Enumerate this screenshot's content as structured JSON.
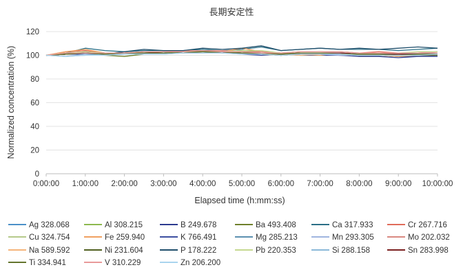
{
  "chart_data": {
    "type": "line",
    "title": "長期安定性",
    "xlabel": "Elapsed time (h:mm:ss)",
    "ylabel": "Normalized concentration (%)",
    "ylim": [
      0,
      120
    ],
    "yticks": [
      0,
      20,
      40,
      60,
      80,
      100,
      120
    ],
    "grid": true,
    "legend_position": "bottom",
    "x": [
      "0:00:00",
      "0:30:00",
      "1:00:00",
      "1:30:00",
      "2:00:00",
      "2:30:00",
      "3:00:00",
      "3:30:00",
      "4:00:00",
      "4:30:00",
      "5:00:00",
      "5:30:00",
      "6:00:00",
      "6:30:00",
      "7:00:00",
      "7:30:00",
      "8:00:00",
      "8:30:00",
      "9:00:00",
      "9:30:00",
      "10:00:00"
    ],
    "xticks": [
      "0:00:00",
      "1:00:00",
      "2:00:00",
      "3:00:00",
      "4:00:00",
      "5:00:00",
      "6:00:00",
      "7:00:00",
      "8:00:00",
      "9:00:00",
      "10:00:00"
    ],
    "series": [
      {
        "name": "Ag 328.068",
        "color": "#4a90c8",
        "values": [
          100,
          101,
          102,
          101,
          102,
          103,
          102,
          103,
          104,
          103,
          103,
          102,
          101,
          102,
          101,
          102,
          101,
          101,
          100,
          101,
          101
        ]
      },
      {
        "name": "Al 308.215",
        "color": "#8db94e",
        "values": [
          100,
          102,
          103,
          102,
          101,
          102,
          103,
          103,
          102,
          103,
          104,
          103,
          102,
          101,
          102,
          101,
          101,
          100,
          99,
          100,
          101
        ]
      },
      {
        "name": "B 249.678",
        "color": "#2b3a8f",
        "values": [
          100,
          101,
          102,
          102,
          101,
          102,
          102,
          103,
          103,
          103,
          101,
          100,
          101,
          100,
          100,
          100,
          99,
          99,
          98,
          99,
          100
        ]
      },
      {
        "name": "Ba 493.408",
        "color": "#6e7f2a",
        "values": [
          100,
          101,
          101,
          100,
          99,
          101,
          102,
          102,
          103,
          103,
          102,
          101,
          100,
          101,
          101,
          101,
          100,
          100,
          100,
          100,
          101
        ]
      },
      {
        "name": "Ca 317.933",
        "color": "#2a6e86",
        "values": [
          100,
          102,
          106,
          104,
          103,
          104,
          104,
          104,
          105,
          104,
          105,
          107,
          104,
          105,
          106,
          105,
          105,
          105,
          104,
          105,
          106
        ]
      },
      {
        "name": "Cr 267.716",
        "color": "#e06b5a",
        "values": [
          100,
          103,
          104,
          102,
          102,
          103,
          103,
          104,
          104,
          104,
          103,
          102,
          102,
          103,
          103,
          103,
          102,
          103,
          102,
          102,
          103
        ]
      },
      {
        "name": "Cu 324.754",
        "color": "#b5c98a",
        "values": [
          100,
          102,
          103,
          102,
          102,
          102,
          103,
          103,
          104,
          103,
          103,
          102,
          101,
          102,
          102,
          101,
          101,
          101,
          100,
          101,
          101
        ]
      },
      {
        "name": "Fe 259.940",
        "color": "#f0a060",
        "values": [
          100,
          103,
          105,
          102,
          102,
          103,
          103,
          103,
          104,
          103,
          106,
          103,
          102,
          101,
          100,
          102,
          100,
          101,
          99,
          100,
          100
        ]
      },
      {
        "name": "K 766.491",
        "color": "#3c4ea0",
        "values": [
          100,
          101,
          101,
          101,
          102,
          101,
          102,
          102,
          102,
          103,
          101,
          101,
          100,
          101,
          101,
          100,
          100,
          100,
          99,
          99,
          99
        ]
      },
      {
        "name": "Mg 285.213",
        "color": "#5b8fb0",
        "values": [
          100,
          101,
          102,
          101,
          102,
          102,
          102,
          103,
          103,
          103,
          102,
          102,
          101,
          102,
          102,
          102,
          101,
          101,
          101,
          101,
          102
        ]
      },
      {
        "name": "Mn 293.305",
        "color": "#9fb4df",
        "values": [
          100,
          99,
          101,
          100,
          101,
          101,
          101,
          102,
          102,
          102,
          101,
          101,
          100,
          101,
          101,
          100,
          100,
          100,
          100,
          100,
          100
        ]
      },
      {
        "name": "Mo 202.032",
        "color": "#d98880",
        "values": [
          100,
          102,
          103,
          102,
          102,
          103,
          103,
          104,
          104,
          104,
          103,
          103,
          102,
          103,
          103,
          103,
          102,
          102,
          102,
          102,
          103
        ]
      },
      {
        "name": "Na 589.592",
        "color": "#f5b57a",
        "values": [
          100,
          101,
          102,
          101,
          101,
          102,
          102,
          102,
          103,
          103,
          102,
          101,
          101,
          100,
          101,
          101,
          100,
          100,
          99,
          100,
          100
        ]
      },
      {
        "name": "Ni 231.604",
        "color": "#4f5f1f",
        "values": [
          100,
          101,
          102,
          101,
          101,
          102,
          102,
          102,
          103,
          102,
          102,
          101,
          100,
          101,
          101,
          101,
          100,
          100,
          100,
          100,
          100
        ]
      },
      {
        "name": "P 178.222",
        "color": "#1f4e6b",
        "values": [
          100,
          101,
          103,
          101,
          103,
          105,
          104,
          104,
          106,
          105,
          106,
          108,
          104,
          105,
          106,
          105,
          106,
          105,
          106,
          107,
          106
        ]
      },
      {
        "name": "Pb 220.353",
        "color": "#c5d88f",
        "values": [
          100,
          102,
          103,
          102,
          102,
          103,
          103,
          103,
          104,
          103,
          104,
          104,
          102,
          103,
          103,
          103,
          102,
          102,
          102,
          103,
          103
        ]
      },
      {
        "name": "Si 288.158",
        "color": "#8ab8d8",
        "values": [
          100,
          99,
          100,
          101,
          101,
          102,
          102,
          103,
          103,
          103,
          102,
          102,
          101,
          102,
          102,
          102,
          101,
          101,
          101,
          102,
          102
        ]
      },
      {
        "name": "Sn 283.998",
        "color": "#7a1f1f",
        "values": [
          100,
          101,
          102,
          101,
          102,
          102,
          103,
          103,
          103,
          103,
          102,
          102,
          101,
          102,
          102,
          102,
          101,
          101,
          101,
          101,
          101
        ]
      },
      {
        "name": "Ti 334.941",
        "color": "#64752d",
        "values": [
          100,
          101,
          102,
          101,
          102,
          102,
          102,
          103,
          103,
          103,
          102,
          102,
          101,
          102,
          102,
          101,
          101,
          101,
          100,
          101,
          101
        ]
      },
      {
        "name": "V 310.229",
        "color": "#e89a9a",
        "values": [
          100,
          102,
          102,
          102,
          102,
          103,
          103,
          103,
          104,
          103,
          103,
          102,
          102,
          103,
          103,
          103,
          102,
          102,
          102,
          102,
          102
        ]
      },
      {
        "name": "Zn 206.200",
        "color": "#a9d4ee",
        "values": [
          100,
          99,
          100,
          100,
          101,
          101,
          101,
          102,
          102,
          102,
          101,
          101,
          100,
          101,
          101,
          101,
          100,
          100,
          100,
          100,
          101
        ]
      }
    ]
  }
}
